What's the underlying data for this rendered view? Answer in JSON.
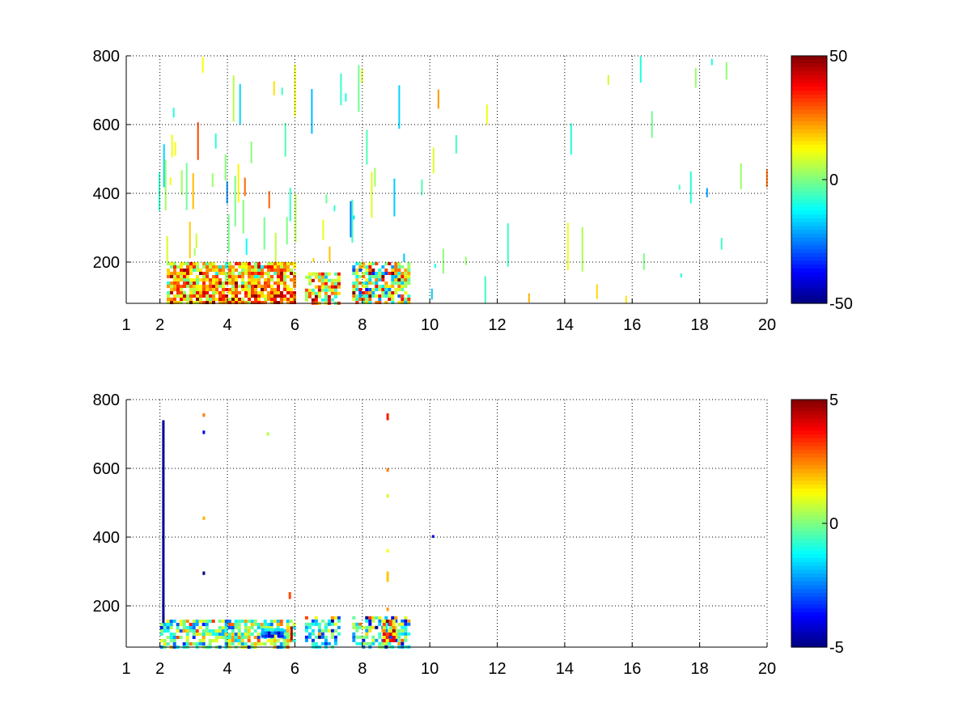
{
  "chart_data": [
    {
      "type": "heatmap",
      "title": "",
      "xlabel": "",
      "ylabel": "",
      "x_ticks": [
        1,
        2,
        4,
        6,
        8,
        10,
        12,
        14,
        16,
        18,
        20
      ],
      "y_ticks": [
        200,
        400,
        600,
        800
      ],
      "xlim": [
        1,
        20
      ],
      "ylim": [
        80,
        800
      ],
      "grid": true,
      "colormap": "jet",
      "colorbar": {
        "min": -50,
        "max": 50,
        "ticks": [
          50,
          0,
          -50
        ]
      },
      "empty_value_color": "#ffffff",
      "regions": [
        {
          "x": [
            1.0,
            2.0
          ],
          "y": [
            80,
            800
          ],
          "density": 0.08,
          "mean": 2,
          "spread": 10,
          "shape": "streaks"
        },
        {
          "x": [
            2.0,
            6.0
          ],
          "y": [
            200,
            800
          ],
          "density": 0.28,
          "mean": 4,
          "spread": 12,
          "shape": "streaks"
        },
        {
          "x": [
            6.0,
            9.8
          ],
          "y": [
            200,
            800
          ],
          "density": 0.16,
          "mean": -3,
          "spread": 12,
          "shape": "streaks"
        },
        {
          "x": [
            9.8,
            20.0
          ],
          "y": [
            80,
            800
          ],
          "density": 0.1,
          "mean": 0,
          "spread": 12,
          "shape": "streaks"
        },
        {
          "x": [
            2.2,
            6.0
          ],
          "y": [
            80,
            200
          ],
          "density": 0.85,
          "mean": 28,
          "spread": 14,
          "shape": "blocks"
        },
        {
          "x": [
            6.3,
            7.3
          ],
          "y": [
            80,
            170
          ],
          "density": 0.75,
          "mean": 18,
          "spread": 18,
          "shape": "blocks"
        },
        {
          "x": [
            7.7,
            9.4
          ],
          "y": [
            80,
            200
          ],
          "density": 0.75,
          "mean": 10,
          "spread": 20,
          "shape": "blocks"
        }
      ]
    },
    {
      "type": "heatmap",
      "title": "",
      "xlabel": "",
      "ylabel": "",
      "x_ticks": [
        1,
        2,
        4,
        6,
        8,
        10,
        12,
        14,
        16,
        18,
        20
      ],
      "y_ticks": [
        200,
        400,
        600,
        800
      ],
      "xlim": [
        1,
        20
      ],
      "ylim": [
        80,
        800
      ],
      "grid": true,
      "colormap": "jet",
      "colorbar": {
        "min": -5,
        "max": 5,
        "ticks": [
          5,
          0,
          -5
        ]
      },
      "empty_value_color": "#ffffff",
      "regions": [
        {
          "x": [
            2.0,
            6.0
          ],
          "y": [
            80,
            160
          ],
          "density": 0.7,
          "mean": 0,
          "spread": 1.5,
          "shape": "blocks"
        },
        {
          "x": [
            6.3,
            7.3
          ],
          "y": [
            80,
            170
          ],
          "density": 0.6,
          "mean": -1.5,
          "spread": 1.8,
          "shape": "blocks"
        },
        {
          "x": [
            7.7,
            9.4
          ],
          "y": [
            80,
            170
          ],
          "density": 0.6,
          "mean": -0.8,
          "spread": 2.0,
          "shape": "blocks"
        },
        {
          "x": [
            5.0,
            5.6
          ],
          "y": [
            110,
            135
          ],
          "density": 0.95,
          "mean": -4.2,
          "spread": 0.6,
          "shape": "blocks"
        },
        {
          "x": [
            8.6,
            8.9
          ],
          "y": [
            100,
            160
          ],
          "density": 0.8,
          "mean": 3,
          "spread": 1.5,
          "shape": "blocks"
        }
      ],
      "marks": [
        {
          "x": 2.1,
          "y": [
            150,
            740
          ],
          "value": -4.8
        },
        {
          "x": 3.3,
          "y": [
            750,
            760
          ],
          "value": 2.5
        },
        {
          "x": 3.3,
          "y": [
            700,
            710
          ],
          "value": -4.0
        },
        {
          "x": 3.3,
          "y": [
            450,
            460
          ],
          "value": 2.0
        },
        {
          "x": 3.3,
          "y": [
            290,
            300
          ],
          "value": -5.0
        },
        {
          "x": 5.2,
          "y": [
            695,
            705
          ],
          "value": 0.5
        },
        {
          "x": 5.85,
          "y": [
            220,
            240
          ],
          "value": 3.0
        },
        {
          "x": 5.9,
          "y": [
            100,
            140
          ],
          "value": 4.5
        },
        {
          "x": 8.75,
          "y": [
            740,
            760
          ],
          "value": 3.5
        },
        {
          "x": 8.75,
          "y": [
            590,
            600
          ],
          "value": 2.5
        },
        {
          "x": 8.75,
          "y": [
            515,
            525
          ],
          "value": 0.8
        },
        {
          "x": 8.75,
          "y": [
            355,
            365
          ],
          "value": 1.2
        },
        {
          "x": 8.75,
          "y": [
            270,
            300
          ],
          "value": 1.8
        },
        {
          "x": 8.75,
          "y": [
            185,
            195
          ],
          "value": 2.2
        },
        {
          "x": 10.1,
          "y": [
            398,
            406
          ],
          "value": -4.0
        }
      ]
    }
  ]
}
